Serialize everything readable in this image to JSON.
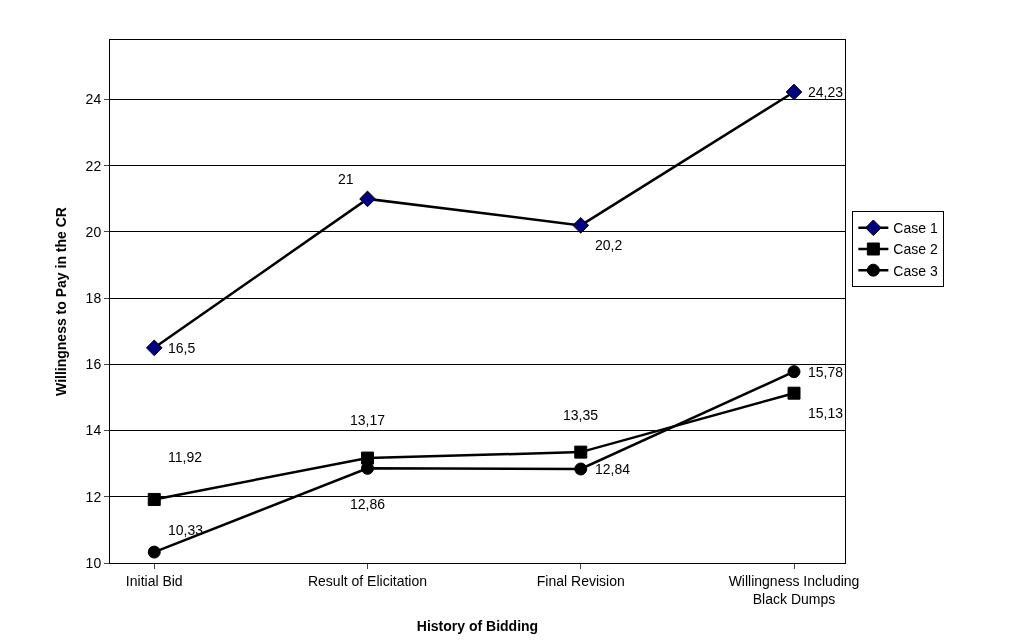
{
  "chart_data": {
    "type": "line",
    "xlabel": "History of Bidding",
    "ylabel": "Willingness to Pay in the CR",
    "categories": [
      "Initial Bid",
      "Result of Elicitation",
      "Final Revision",
      "Willingness Including Black Dumps"
    ],
    "series": [
      {
        "name": "Case 1",
        "color": "#000080",
        "marker": "diamond",
        "values": [
          16.5,
          21,
          20.2,
          24.23
        ],
        "value_labels": [
          "16,5",
          "21",
          "20,2",
          "24,23"
        ]
      },
      {
        "name": "Case 2",
        "color": "#000000",
        "marker": "square",
        "values": [
          11.92,
          13.17,
          13.35,
          15.13
        ],
        "value_labels": [
          "11,92",
          "13,17",
          "13,35",
          "15,13"
        ]
      },
      {
        "name": "Case 3",
        "color": "#000000",
        "marker": "circle",
        "values": [
          10.33,
          12.86,
          12.84,
          15.78
        ],
        "value_labels": [
          "10,33",
          "12,86",
          "12,84",
          "15,78"
        ]
      }
    ],
    "ylim": [
      10,
      25.8
    ],
    "yticks": [
      10,
      12,
      14,
      16,
      18,
      20,
      22,
      24
    ],
    "grid": "y",
    "legend": "right",
    "line_style": "solid"
  }
}
